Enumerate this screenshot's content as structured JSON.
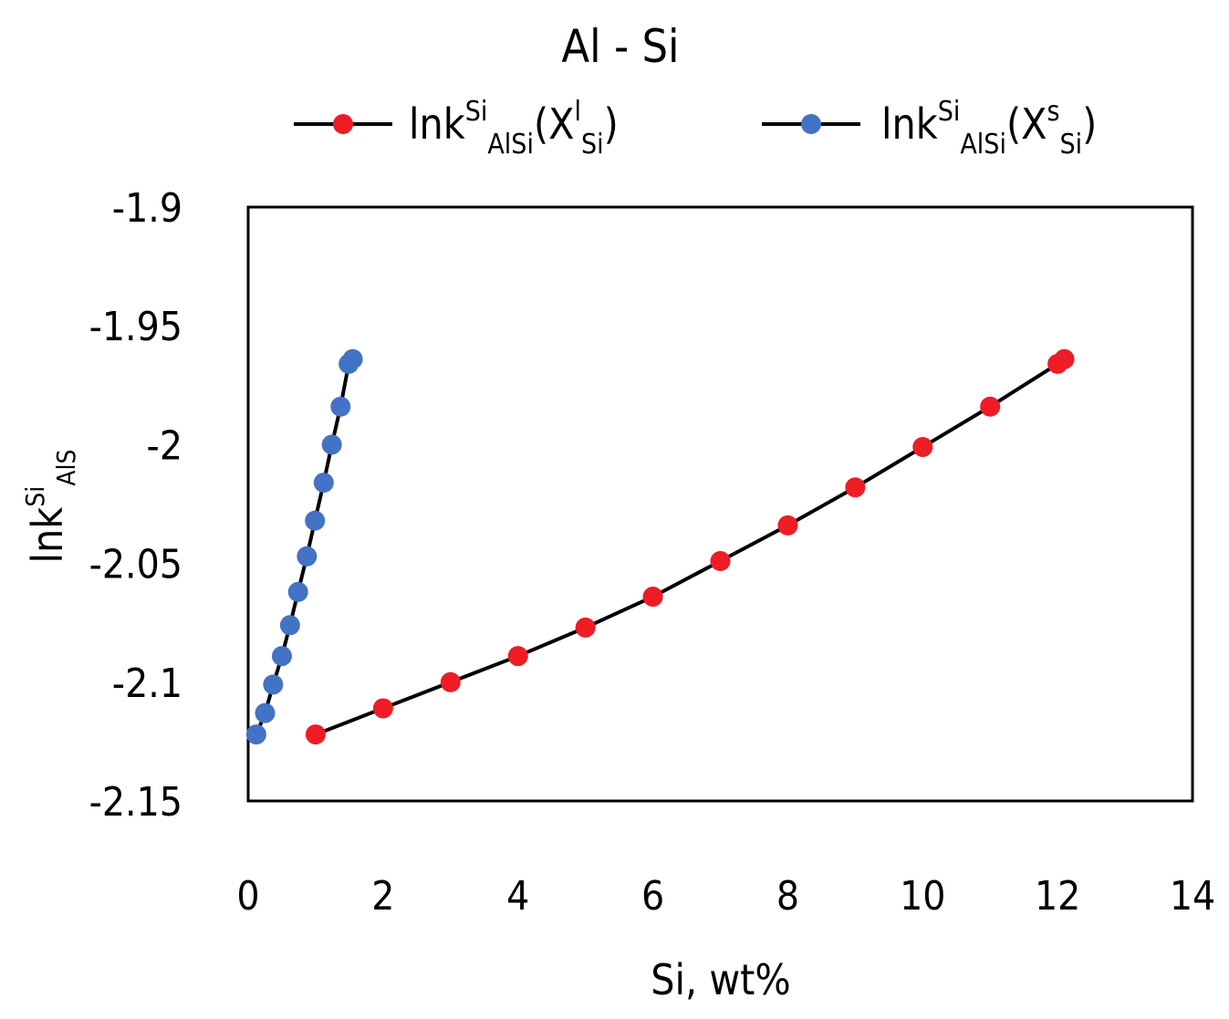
{
  "chart_data": {
    "type": "line",
    "title": "Al - Si",
    "xlabel": "Si, wt%",
    "ylabel": {
      "base": "lnk",
      "sup": "Si",
      "sub": "AlS"
    },
    "xlim": [
      0,
      14
    ],
    "ylim": [
      -2.15,
      -1.9
    ],
    "xticks": [
      "0",
      "2",
      "4",
      "6",
      "8",
      "10",
      "12",
      "14"
    ],
    "yticks": [
      "-1.9",
      "-1.95",
      "-2",
      "-2.05",
      "-2.1",
      "-2.15"
    ],
    "grid": false,
    "legend_position": "top",
    "series": [
      {
        "name": "lnkSiAlSi(XlSi)",
        "label_parts": {
          "base": "lnk",
          "sup1": "Si",
          "sub1": "AlSi",
          "paren_open": "(X",
          "sup2": "l",
          "sub2": "Si",
          "paren_close": ")"
        },
        "color": "#ee1c25",
        "x": [
          1,
          2,
          3,
          4,
          5,
          6,
          7,
          8,
          9,
          10,
          11,
          12,
          12.1
        ],
        "y": [
          -2.122,
          -2.111,
          -2.1,
          -2.089,
          -2.077,
          -2.064,
          -2.049,
          -2.034,
          -2.018,
          -2.001,
          -1.984,
          -1.966,
          -1.964
        ]
      },
      {
        "name": "lnkSiAlSi(XsSi)",
        "label_parts": {
          "base": "lnk",
          "sup1": "Si",
          "sub1": "AlSi",
          "paren_open": "(X",
          "sup2": "s",
          "sub2": "Si",
          "paren_close": ")"
        },
        "color": "#4472c4",
        "x": [
          0.12,
          0.25,
          0.37,
          0.5,
          0.62,
          0.74,
          0.87,
          0.99,
          1.12,
          1.24,
          1.37,
          1.49,
          1.55
        ],
        "y": [
          -2.122,
          -2.113,
          -2.101,
          -2.089,
          -2.076,
          -2.062,
          -2.047,
          -2.032,
          -2.016,
          -2.0,
          -1.984,
          -1.966,
          -1.964
        ]
      }
    ]
  },
  "colors": {
    "line": "#000000",
    "frame": "#000000"
  }
}
